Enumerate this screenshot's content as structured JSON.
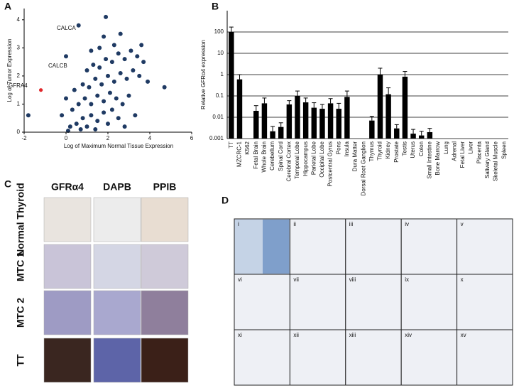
{
  "chart_data": [
    {
      "type": "scatter",
      "ylabel": "Log of Tumor Expression",
      "xlabel": "Log of Maximum Normal Tissue Expression",
      "xlim": [
        -2,
        6
      ],
      "xticks": [
        -2,
        0,
        2,
        4,
        6
      ],
      "ylim": [
        0,
        4.4
      ],
      "yticks": [
        0,
        1,
        2,
        3,
        4
      ],
      "series": [
        {
          "color": "#1f3a63",
          "x": [
            0.5,
            0.8,
            1.0,
            1.2,
            1.5,
            1.8,
            2.0,
            2.2,
            0.3,
            0.6,
            0.9,
            1.2,
            1.5,
            1.8,
            2.1,
            2.4,
            2.7,
            3.0,
            0.4,
            0.8,
            1.1,
            1.4,
            1.7,
            2.0,
            2.3,
            2.6,
            2.9,
            3.2,
            3.5,
            1.0,
            1.3,
            1.6,
            1.9,
            2.2,
            2.5,
            2.8,
            3.1,
            3.4,
            3.7,
            0.2,
            2.5,
            2.8,
            0.0,
            -0.2,
            1.6,
            2.3,
            1.2,
            3.6,
            3.9,
            4.7,
            -1.8,
            1.8,
            2.6,
            0.6,
            0.0,
            1.9,
            3.3,
            1.4,
            0.7,
            0.1
          ],
          "y": [
            0.3,
            0.5,
            0.2,
            0.6,
            0.4,
            0.7,
            0.3,
            0.8,
            0.8,
            1.0,
            1.2,
            1.0,
            1.3,
            1.1,
            1.4,
            1.2,
            1.0,
            1.3,
            1.5,
            1.7,
            1.6,
            1.9,
            1.7,
            2.0,
            1.8,
            2.1,
            1.9,
            2.2,
            2.0,
            2.2,
            2.4,
            2.3,
            2.6,
            2.5,
            2.8,
            2.6,
            2.9,
            2.7,
            2.5,
            0.2,
            0.5,
            0.2,
            1.2,
            0.6,
            3.0,
            3.1,
            2.9,
            3.1,
            1.8,
            1.6,
            0.6,
            3.4,
            3.5,
            3.8,
            2.7,
            4.1,
            0.6,
            0.1,
            0.1,
            0.05
          ]
        },
        {
          "color": "#e0262a",
          "x": [
            -1.2
          ],
          "y": [
            1.5
          ]
        }
      ],
      "annotations": [
        "CALCA",
        "CALCB",
        "GFRA4"
      ]
    },
    {
      "type": "bar",
      "ylabel": "Relative GFRα4 expression",
      "log_scale": true,
      "grid": true,
      "color": "#000000",
      "ylim": [
        0.001,
        1000
      ],
      "yticks": [
        0.001,
        0.01,
        0.1,
        1,
        10,
        100
      ],
      "categories": [
        "TT",
        "MZCRC-1",
        "K562",
        "Fetal Brain",
        "Whole Brain",
        "Cerebellum",
        "Spinal Cord",
        "Cerebral Cortex",
        "Temporal Lobe",
        "Hippocampus",
        "Parietal Lobe",
        "Occipital Lobe",
        "Postcentral Gyrus",
        "Pons",
        "Insula",
        "Dura Matter",
        "Dorsal Root Ganglion",
        "Thymus",
        "Thyroid",
        "Kidney",
        "Prostate",
        "Testis",
        "Uterus",
        "Colon",
        "Small Intestine",
        "Bone Marrow",
        "Lung",
        "Adrenal",
        "Fetal Liver",
        "Liver",
        "Placenta",
        "Salivary Gland",
        "Skeletal Muscle",
        "Spleen"
      ],
      "values": [
        100,
        0.6,
        null,
        0.02,
        0.045,
        0.0022,
        0.0035,
        0.04,
        0.1,
        0.05,
        0.028,
        0.025,
        0.045,
        0.025,
        0.09,
        null,
        null,
        0.007,
        1,
        0.12,
        0.003,
        0.8,
        0.0017,
        0.0014,
        0.002,
        null,
        null,
        null,
        null,
        null,
        null,
        null,
        null,
        null
      ],
      "errors": [
        70,
        0.4,
        null,
        0.015,
        0.035,
        0.0015,
        0.002,
        0.02,
        0.07,
        0.03,
        0.02,
        0.015,
        0.03,
        0.02,
        0.08,
        null,
        null,
        0.004,
        1,
        0.12,
        0.0015,
        0.6,
        0.001,
        0.0008,
        0.001,
        null,
        null,
        null,
        null,
        null,
        null,
        null,
        null,
        null
      ]
    }
  ],
  "panel_labels": [
    "A",
    "B",
    "C",
    "D"
  ],
  "panel_c": {
    "columns": [
      "GFRα4",
      "DAPB",
      "PPIB"
    ],
    "rows": [
      "Normal Thyroid",
      "MTC 1",
      "MTC 2",
      "TT"
    ]
  },
  "panel_d": {
    "cells": [
      "i",
      "ii",
      "iii",
      "iv",
      "v",
      "vi",
      "vii",
      "viii",
      "ix",
      "x",
      "xi",
      "xii",
      "xiii",
      "xiv",
      "xv"
    ]
  }
}
